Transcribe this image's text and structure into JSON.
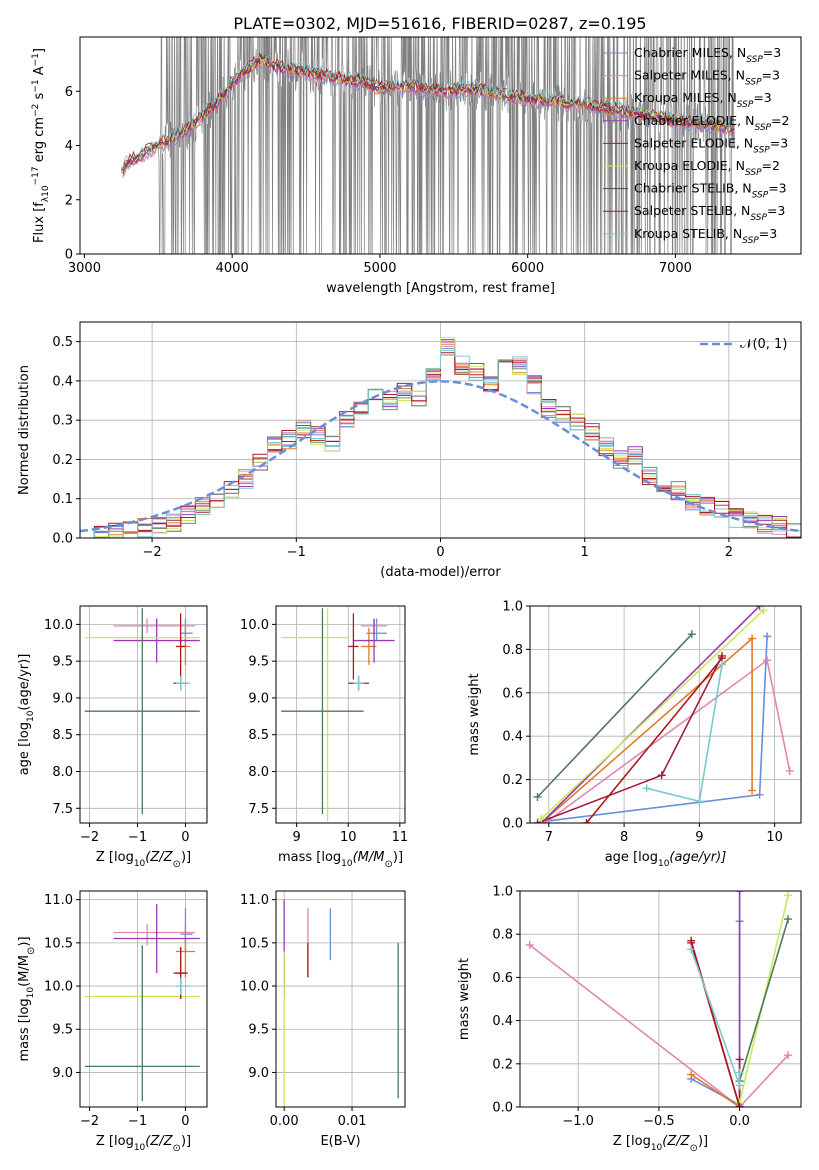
{
  "figure_title": "PLATE=0302, MJD=51616, FIBERID=0287, z=0.195",
  "colors": {
    "chabrier_miles": "#6a8fd8",
    "salpeter_miles": "#e085b5",
    "kroupa_miles": "#e07b28",
    "chabrier_elodie": "#9a3ab8",
    "salpeter_elodie": "#a21f35",
    "kroupa_elodie": "#c7ea5a",
    "chabrier_stelib": "#6e8f74",
    "salpeter_stelib": "#b0161e",
    "kroupa_stelib": "#7cc9cf",
    "data": "#808080",
    "normal": "#6a8fd8"
  },
  "chart_data": [
    {
      "id": "spectrum",
      "type": "line",
      "title": "PLATE=0302, MJD=51616, FIBERID=0287, z=0.195",
      "xlabel": "wavelength [Angstrom, rest frame]",
      "ylabel": "Flux [f",
      "ylabel_parts": [
        "Flux [f",
        "λ",
        "10",
        "−17",
        " erg cm",
        "−2",
        " s",
        "−1",
        " A",
        "−1",
        "]"
      ],
      "xlim": [
        2970,
        7850
      ],
      "ylim": [
        0,
        8.0
      ],
      "xticks": [
        3000,
        4000,
        5000,
        6000,
        7000
      ],
      "yticks": [
        0,
        2,
        4,
        6
      ],
      "legend_position": "top-right",
      "legend": [
        {
          "name": "Chabrier MILES, N",
          "sub": "SSP",
          "tail": "=3",
          "color": "#6a8fd8"
        },
        {
          "name": "Salpeter MILES, N",
          "sub": "SSP",
          "tail": "=3",
          "color": "#e085b5"
        },
        {
          "name": "Kroupa MILES, N",
          "sub": "SSP",
          "tail": "=3",
          "color": "#e07b28"
        },
        {
          "name": "Chabrier ELODIE, N",
          "sub": "SSP",
          "tail": "=2",
          "color": "#9a3ab8"
        },
        {
          "name": "Salpeter ELODIE, N",
          "sub": "SSP",
          "tail": "=3",
          "color": "#a21f35"
        },
        {
          "name": "Kroupa ELODIE, N",
          "sub": "SSP",
          "tail": "=2",
          "color": "#c7ea5a"
        },
        {
          "name": "Chabrier STELIB, N",
          "sub": "SSP",
          "tail": "=3",
          "color": "#4d4d4d"
        },
        {
          "name": "Salpeter STELIB, N",
          "sub": "SSP",
          "tail": "=3",
          "color": "#b0161e"
        },
        {
          "name": "Kroupa STELIB, N",
          "sub": "SSP",
          "tail": "=3",
          "color": "#7cc9cf"
        }
      ],
      "model_continuum": {
        "wavelength": [
          3250,
          3300,
          3400,
          3500,
          3600,
          3700,
          3800,
          3900,
          4000,
          4100,
          4200,
          4300,
          4400,
          4500,
          4600,
          4700,
          4800,
          4900,
          5000,
          5200,
          5400,
          5600,
          5800,
          6000,
          6200,
          6400,
          6600,
          6800,
          7000,
          7200,
          7400
        ],
        "flux": [
          3.1,
          3.4,
          3.7,
          4.0,
          4.3,
          4.6,
          5.1,
          5.6,
          6.3,
          6.8,
          7.2,
          6.9,
          6.8,
          6.7,
          6.6,
          6.5,
          6.4,
          6.3,
          6.1,
          6.2,
          6.0,
          6.1,
          5.9,
          5.7,
          5.6,
          5.5,
          5.3,
          5.1,
          4.9,
          4.8,
          4.6
        ]
      },
      "data_note_visible": "dense noisy grey data spectrum spanning 3250-7400 A"
    },
    {
      "id": "residuals",
      "type": "bar",
      "xlabel": "(data-model)/error",
      "ylabel": "Normed distribution",
      "xlim": [
        -2.5,
        2.5
      ],
      "ylim": [
        0,
        0.55
      ],
      "xticks": [
        -2,
        -1,
        0,
        1,
        2
      ],
      "xtick_labels": [
        "−2",
        "−1",
        "0",
        "1",
        "2"
      ],
      "yticks": [
        0,
        0.1,
        0.2,
        0.3,
        0.4,
        0.5
      ],
      "ytick_labels": [
        "0.0",
        "0.1",
        "0.2",
        "0.3",
        "0.4",
        "0.5"
      ],
      "legend_position": "top-right",
      "legend_label": "𝒩(0, 1)",
      "bin_edges_start": -2.5,
      "bin_width": 0.1,
      "histogram": [
        0.005,
        0.01,
        0.015,
        0.02,
        0.025,
        0.03,
        0.04,
        0.06,
        0.08,
        0.1,
        0.12,
        0.15,
        0.19,
        0.24,
        0.25,
        0.28,
        0.26,
        0.24,
        0.3,
        0.33,
        0.36,
        0.35,
        0.37,
        0.36,
        0.41,
        0.49,
        0.44,
        0.42,
        0.39,
        0.47,
        0.44,
        0.39,
        0.33,
        0.31,
        0.3,
        0.27,
        0.23,
        0.2,
        0.21,
        0.16,
        0.14,
        0.12,
        0.09,
        0.08,
        0.07,
        0.05,
        0.045,
        0.035,
        0.03,
        0.02
      ]
    },
    {
      "id": "age_vs_Z",
      "type": "scatter",
      "xlabel": "Z [log",
      "xlabel_parts": [
        "Z [log",
        "10",
        "(Z/Z",
        "⊙",
        ")]"
      ],
      "ylabel_parts": [
        "age  [log",
        "10",
        "(age/yr)]"
      ],
      "xlim": [
        -2.2,
        0.45
      ],
      "ylim": [
        7.3,
        10.25
      ],
      "xticks": [
        -2,
        -1,
        0
      ],
      "xtick_labels": [
        "−2",
        "−1",
        "0"
      ],
      "yticks": [
        7.5,
        8.0,
        8.5,
        9.0,
        9.5,
        10.0
      ],
      "ytick_labels": [
        "7.5",
        "8.0",
        "8.5",
        "9.0",
        "9.5",
        "10.0"
      ],
      "points": [
        {
          "x": 0.0,
          "xerr": [
            0.1,
            0.15
          ],
          "y": 9.88,
          "yerr": [
            0.12,
            0.2
          ],
          "color": "#6a8fd8"
        },
        {
          "x": -0.8,
          "xerr": [
            0.7,
            1.0
          ],
          "y": 9.98,
          "yerr": [
            0.1,
            0.1
          ],
          "color": "#e085b5"
        },
        {
          "x": 0.0,
          "xerr": [
            0.1,
            0.1
          ],
          "y": 9.7,
          "yerr": [
            0.25,
            0.25
          ],
          "color": "#e07b28"
        },
        {
          "x": -0.6,
          "xerr": [
            0.9,
            0.9
          ],
          "y": 9.78,
          "yerr": [
            0.3,
            0.3
          ],
          "color": "#9a3ab8"
        },
        {
          "x": -0.1,
          "xerr": [
            0.15,
            0.15
          ],
          "y": 9.2,
          "yerr": [
            0.1,
            0.1
          ],
          "color": "#a21f35"
        },
        {
          "x": -0.9,
          "xerr": [
            1.2,
            1.2
          ],
          "y": 9.82,
          "yerr": [
            0.1,
            0.1
          ],
          "color": "#c7ea5a"
        },
        {
          "x": -0.9,
          "xerr": [
            1.2,
            1.2
          ],
          "y": 8.82,
          "yerr": [
            1.4,
            1.4
          ],
          "color": "#4d7a5a"
        },
        {
          "x": -0.1,
          "xerr": [
            0.1,
            0.1
          ],
          "y": 9.7,
          "yerr": [
            0.45,
            0.45
          ],
          "color": "#b0161e"
        },
        {
          "x": -0.1,
          "xerr": [
            0.1,
            0.2
          ],
          "y": 9.2,
          "yerr": [
            0.1,
            0.1
          ],
          "color": "#7cc9cf"
        }
      ]
    },
    {
      "id": "age_vs_mass",
      "type": "scatter",
      "xlabel_parts": [
        "mass [log",
        "10",
        "(M/M",
        "⊙",
        ")]"
      ],
      "xlim": [
        8.6,
        11.1
      ],
      "ylim": [
        7.3,
        10.25
      ],
      "xticks": [
        9,
        10,
        11
      ],
      "xtick_labels": [
        "9",
        "10",
        "11"
      ],
      "yticks": [
        7.5,
        8.0,
        8.5,
        9.0,
        9.5,
        10.0
      ],
      "ytick_labels": [
        "7.5",
        "8.0",
        "8.5",
        "9.0",
        "9.5",
        "10.0"
      ],
      "points": [
        {
          "x": 10.55,
          "xerr": [
            0.2,
            0.2
          ],
          "y": 9.88,
          "yerr": [
            0.1,
            0.2
          ],
          "color": "#6a8fd8"
        },
        {
          "x": 10.5,
          "xerr": [
            0.25,
            0.25
          ],
          "y": 9.98,
          "yerr": [
            0.12,
            0.1
          ],
          "color": "#e085b5"
        },
        {
          "x": 10.4,
          "xerr": [
            0.15,
            0.15
          ],
          "y": 9.7,
          "yerr": [
            0.25,
            0.25
          ],
          "color": "#e07b28"
        },
        {
          "x": 10.5,
          "xerr": [
            0.4,
            0.4
          ],
          "y": 9.78,
          "yerr": [
            0.3,
            0.3
          ],
          "color": "#9a3ab8"
        },
        {
          "x": 10.2,
          "xerr": [
            0.2,
            0.2
          ],
          "y": 9.2,
          "yerr": [
            0.1,
            0.1
          ],
          "color": "#a21f35"
        },
        {
          "x": 9.6,
          "xerr": [
            0.9,
            0.4
          ],
          "y": 9.82,
          "yerr": [
            2.5,
            0.4
          ],
          "color": "#c7ea5a"
        },
        {
          "x": 9.5,
          "xerr": [
            0.8,
            0.8
          ],
          "y": 8.82,
          "yerr": [
            1.4,
            1.4
          ],
          "color": "#4d7a5a"
        },
        {
          "x": 10.1,
          "xerr": [
            0.1,
            0.1
          ],
          "y": 9.7,
          "yerr": [
            0.45,
            0.45
          ],
          "color": "#b0161e"
        },
        {
          "x": 10.2,
          "xerr": [
            0.1,
            0.1
          ],
          "y": 9.2,
          "yerr": [
            0.1,
            0.1
          ],
          "color": "#7cc9cf"
        }
      ]
    },
    {
      "id": "weight_vs_age",
      "type": "line",
      "xlabel_parts": [
        "age  [log",
        "10",
        "(age/yr)]"
      ],
      "ylabel": "mass weight",
      "xlim": [
        6.75,
        10.35
      ],
      "ylim": [
        0,
        1.0
      ],
      "xticks": [
        7,
        8,
        9,
        10
      ],
      "yticks": [
        0,
        0.2,
        0.4,
        0.6,
        0.8,
        1.0
      ],
      "ytick_labels": [
        "0.0",
        "0.2",
        "0.4",
        "0.6",
        "0.8",
        "1.0"
      ],
      "series": [
        {
          "color": "#6a8fd8",
          "x": [
            7.0,
            9.8,
            9.9
          ],
          "y": [
            0.01,
            0.13,
            0.86
          ]
        },
        {
          "color": "#e085b5",
          "x": [
            6.95,
            9.9,
            10.2
          ],
          "y": [
            0.0,
            0.75,
            0.24
          ]
        },
        {
          "color": "#e07b28",
          "x": [
            6.9,
            9.7,
            9.7
          ],
          "y": [
            0.0,
            0.85,
            0.15
          ]
        },
        {
          "color": "#9a3ab8",
          "x": [
            6.9,
            9.8
          ],
          "y": [
            0.0,
            1.0
          ]
        },
        {
          "color": "#a21f35",
          "x": [
            6.85,
            8.5,
            9.3
          ],
          "y": [
            0.0,
            0.22,
            0.77
          ]
        },
        {
          "color": "#c7ea5a",
          "x": [
            6.9,
            9.85
          ],
          "y": [
            0.02,
            0.98
          ]
        },
        {
          "color": "#4d7a5a",
          "x": [
            6.85,
            8.9
          ],
          "y": [
            0.12,
            0.87
          ]
        },
        {
          "color": "#b0161e",
          "x": [
            7.5,
            9.3
          ],
          "y": [
            0.0,
            0.76
          ]
        },
        {
          "color": "#7cc9cf",
          "x": [
            8.3,
            9.0,
            9.3
          ],
          "y": [
            0.16,
            0.1,
            0.73
          ]
        }
      ]
    },
    {
      "id": "mass_vs_Z",
      "type": "scatter",
      "xlabel_parts": [
        "Z [log",
        "10",
        "(Z/Z",
        "⊙",
        ")]"
      ],
      "ylabel_parts": [
        "mass [log",
        "10",
        "(M/M",
        "⊙",
        ")]"
      ],
      "xlim": [
        -2.2,
        0.45
      ],
      "ylim": [
        8.6,
        11.1
      ],
      "xticks": [
        -2,
        -1,
        0
      ],
      "xtick_labels": [
        "−2",
        "−1",
        "0"
      ],
      "yticks": [
        9.0,
        9.5,
        10.0,
        10.5,
        11.0
      ],
      "ytick_labels": [
        "9.0",
        "9.5",
        "10.0",
        "10.5",
        "11.0"
      ],
      "points": [
        {
          "x": 0.0,
          "xerr": [
            0.1,
            0.15
          ],
          "y": 10.6,
          "yerr": [
            0.2,
            0.3
          ],
          "color": "#6a8fd8"
        },
        {
          "x": -0.8,
          "xerr": [
            0.7,
            1.0
          ],
          "y": 10.62,
          "yerr": [
            0.15,
            0.1
          ],
          "color": "#e085b5"
        },
        {
          "x": 0.0,
          "xerr": [
            0.2,
            0.2
          ],
          "y": 10.4,
          "yerr": [
            0.3,
            0.3
          ],
          "color": "#e07b28"
        },
        {
          "x": -0.6,
          "xerr": [
            0.9,
            0.9
          ],
          "y": 10.55,
          "yerr": [
            0.4,
            0.4
          ],
          "color": "#9a3ab8"
        },
        {
          "x": -0.1,
          "xerr": [
            0.15,
            0.15
          ],
          "y": 10.15,
          "yerr": [
            0.3,
            0.3
          ],
          "color": "#a21f35"
        },
        {
          "x": -0.9,
          "xerr": [
            1.2,
            1.2
          ],
          "y": 9.88,
          "yerr": [
            0.1,
            0.1
          ],
          "color": "#c7ea5a"
        },
        {
          "x": -0.9,
          "xerr": [
            1.2,
            1.2
          ],
          "y": 9.07,
          "yerr": [
            0.4,
            1.4
          ],
          "color": "#4d7a5a"
        },
        {
          "x": -0.1,
          "xerr": [
            0.1,
            0.1
          ],
          "y": 10.15,
          "yerr": [
            0.3,
            0.3
          ],
          "color": "#b0161e"
        },
        {
          "x": -0.1,
          "xerr": [
            0.1,
            0.2
          ],
          "y": 10.0,
          "yerr": [
            0.1,
            0.1
          ],
          "color": "#7cc9cf"
        }
      ]
    },
    {
      "id": "mass_vs_ebv",
      "type": "scatter",
      "xlabel": "E(B-V)",
      "xlim": [
        -0.0012,
        0.0178
      ],
      "ylim": [
        8.6,
        11.1
      ],
      "xticks": [
        0.0,
        0.01
      ],
      "xtick_labels": [
        "0.00",
        "0.01"
      ],
      "yticks": [
        9.0,
        9.5,
        10.0,
        10.5,
        11.0
      ],
      "ytick_labels": [
        "9.0",
        "9.5",
        "10.0",
        "10.5",
        "11.0"
      ],
      "points": [
        {
          "x": 0.0068,
          "y": 10.6,
          "yerr": [
            0.3,
            0.3
          ],
          "color": "#6a8fd8"
        },
        {
          "x": 0.0035,
          "y": 10.5,
          "yerr": [
            0.4,
            0.4
          ],
          "color": "#e085b5"
        },
        {
          "x": 0.0035,
          "y": 10.3,
          "yerr": [
            0.2,
            0.2
          ],
          "color": "#b0161e"
        },
        {
          "x": 0.0,
          "y": 10.3,
          "yerr": [
            0.4,
            0.7
          ],
          "color": "#9a3ab8"
        },
        {
          "x": 0.0,
          "y": 9.5,
          "yerr": [
            0.9,
            0.9
          ],
          "color": "#c7ea5a"
        },
        {
          "x": 0.0168,
          "y": 9.6,
          "yerr": [
            0.9,
            0.9
          ],
          "color": "#4d7a5a"
        }
      ]
    },
    {
      "id": "weight_vs_Z",
      "type": "line",
      "xlabel_parts": [
        "Z [log",
        "10",
        "(Z/Z",
        "⊙",
        ")]"
      ],
      "ylabel": "mass weight",
      "xlim": [
        -1.36,
        0.38
      ],
      "ylim": [
        0,
        1.0
      ],
      "xticks": [
        -1.0,
        -0.5,
        0.0
      ],
      "xtick_labels": [
        "−1.0",
        "−0.5",
        "0.0"
      ],
      "yticks": [
        0,
        0.2,
        0.4,
        0.6,
        0.8,
        1.0
      ],
      "ytick_labels": [
        "0.0",
        "0.2",
        "0.4",
        "0.6",
        "0.8",
        "1.0"
      ],
      "series": [
        {
          "color": "#e085b5",
          "x": [
            -1.3,
            0.0,
            0.3
          ],
          "y": [
            0.75,
            0.0,
            0.24
          ]
        },
        {
          "color": "#6a8fd8",
          "x": [
            -0.3,
            0.0,
            0.0
          ],
          "y": [
            0.13,
            0.01,
            0.86
          ]
        },
        {
          "color": "#e07b28",
          "x": [
            -0.3,
            0.0
          ],
          "y": [
            0.15,
            0.0
          ]
        },
        {
          "color": "#9a3ab8",
          "x": [
            0.0,
            0.0
          ],
          "y": [
            0.0,
            1.0
          ]
        },
        {
          "color": "#a21f35",
          "x": [
            -0.3,
            0.0,
            0.0
          ],
          "y": [
            0.77,
            0.0,
            0.22
          ]
        },
        {
          "color": "#c7ea5a",
          "x": [
            0.0,
            0.3
          ],
          "y": [
            0.02,
            0.98
          ]
        },
        {
          "color": "#4d7a5a",
          "x": [
            0.0,
            0.3
          ],
          "y": [
            0.12,
            0.87
          ]
        },
        {
          "color": "#b0161e",
          "x": [
            -0.3,
            0.0
          ],
          "y": [
            0.76,
            0.0
          ]
        },
        {
          "color": "#7cc9cf",
          "x": [
            -0.3,
            0.0,
            0.0
          ],
          "y": [
            0.73,
            0.1,
            0.16
          ]
        }
      ]
    }
  ]
}
